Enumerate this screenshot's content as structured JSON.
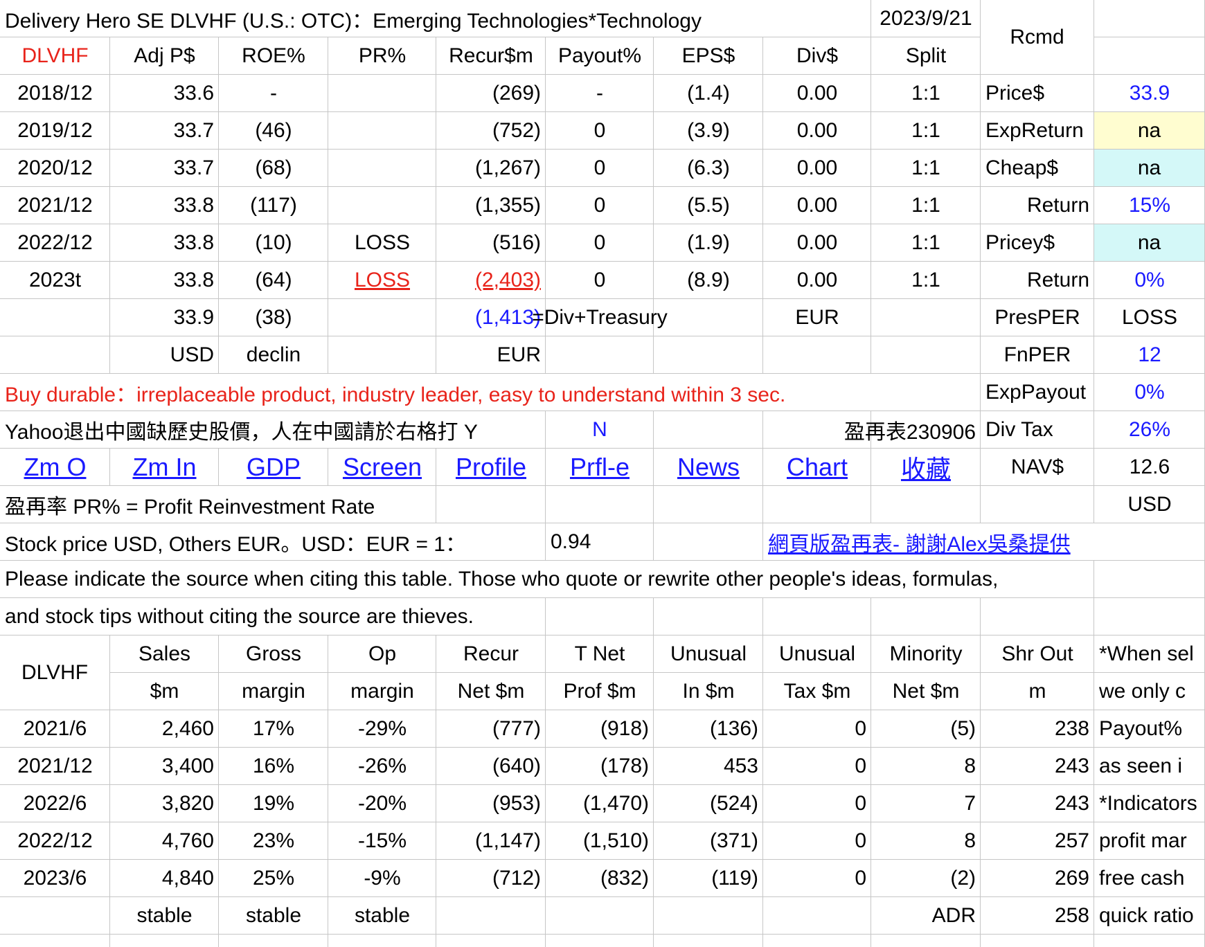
{
  "rows": [
    [
      "Delivery Hero SE DLVHF (U.S.: OTC)：Emerging Technologies*Technology",
      null,
      null,
      null,
      null,
      null,
      null,
      null,
      "2023/9/21",
      "Rcmd",
      null
    ],
    [
      "DLVHF",
      "Adj P$",
      "ROE%",
      "PR%",
      "Recur$m",
      "Payout%",
      "EPS$",
      "Div$",
      "Split",
      null,
      null
    ],
    [
      "2018/12",
      "33.6",
      "-",
      null,
      "(269)",
      "-",
      "(1.4)",
      "0.00",
      "1:1",
      "Price$",
      "33.9"
    ],
    [
      "2019/12",
      "33.7",
      "(46)",
      null,
      "(752)",
      "0",
      "(3.9)",
      "0.00",
      "1:1",
      "ExpReturn",
      "na"
    ],
    [
      "2020/12",
      "33.7",
      "(68)",
      null,
      "(1,267)",
      "0",
      "(6.3)",
      "0.00",
      "1:1",
      "Cheap$",
      "na"
    ],
    [
      "2021/12",
      "33.8",
      "(117)",
      null,
      "(1,355)",
      "0",
      "(5.5)",
      "0.00",
      "1:1",
      "Return",
      "15%"
    ],
    [
      "2022/12",
      "33.8",
      "(10)",
      "LOSS",
      "(516)",
      "0",
      "(1.9)",
      "0.00",
      "1:1",
      "Pricey$",
      "na"
    ],
    [
      "2023t",
      "33.8",
      "(64)",
      "LOSS",
      "(2,403)",
      "0",
      "(8.9)",
      "0.00",
      "1:1",
      "Return",
      "0%"
    ],
    [
      null,
      "33.9",
      "(38)",
      null,
      "(1,413)",
      "=Div+Treasury",
      null,
      "EUR",
      null,
      "PresPER",
      "LOSS"
    ],
    [
      null,
      "USD",
      "declin",
      null,
      "EUR",
      null,
      null,
      null,
      null,
      "FnPER",
      "12"
    ],
    [
      "Buy durable：irreplaceable product, industry leader, easy to understand within 3 sec.",
      null,
      null,
      null,
      null,
      null,
      null,
      null,
      null,
      "ExpPayout",
      "0%"
    ],
    [
      "Yahoo退出中國缺歷史股價，人在中國請於右格打 Y",
      null,
      null,
      null,
      null,
      "N",
      null,
      null,
      "盈再表230906",
      "Div Tax",
      "26%"
    ],
    [
      "Zm O",
      "Zm In",
      "GDP",
      "Screen",
      "Profile",
      "Prfl-e",
      "News",
      "Chart",
      "收藏",
      "NAV$",
      "12.6"
    ],
    [
      "盈再率 PR% = Profit Reinvestment Rate",
      null,
      null,
      null,
      null,
      null,
      null,
      null,
      null,
      null,
      "USD"
    ],
    [
      " Stock price USD, Others EUR。USD：EUR = 1：",
      null,
      null,
      null,
      null,
      "0.94",
      null,
      "網頁版盈再表- 謝謝Alex吳桑提供",
      null,
      null,
      null
    ],
    [
      "Please indicate the source when citing this table. Those who quote or rewrite other people's ideas, formulas,",
      null,
      null,
      null,
      null,
      null,
      null,
      null,
      null,
      null,
      null
    ],
    [
      "and stock tips without citing the source are thieves.",
      null,
      null,
      null,
      null,
      null,
      null,
      null,
      null,
      null,
      null
    ],
    [
      "DLVHF",
      "Sales",
      "Gross",
      "Op",
      "Recur",
      "T Net",
      "Unusual",
      "Unusual",
      "Minority",
      "Shr Out",
      "*When sel"
    ],
    [
      null,
      "$m",
      "margin",
      "margin",
      "Net $m",
      "Prof $m",
      "In $m",
      "Tax $m",
      "Net $m",
      "m",
      "we only c"
    ],
    [
      "2021/6",
      "2,460",
      "17%",
      "-29%",
      "(777)",
      "(918)",
      "(136)",
      "0",
      "(5)",
      "238",
      "Payout%"
    ],
    [
      "2021/12",
      "3,400",
      "16%",
      "-26%",
      "(640)",
      "(178)",
      "453",
      "0",
      "8",
      "243",
      "as seen i"
    ],
    [
      "2022/6",
      "3,820",
      "19%",
      "-20%",
      "(953)",
      "(1,470)",
      "(524)",
      "0",
      "7",
      "243",
      "*Indicators"
    ],
    [
      "2022/12",
      "4,760",
      "23%",
      "-15%",
      "(1,147)",
      "(1,510)",
      "(371)",
      "0",
      "8",
      "257",
      "profit mar"
    ],
    [
      "2023/6",
      "4,840",
      "25%",
      "-9%",
      "(712)",
      "(832)",
      "(119)",
      "0",
      "(2)",
      "269",
      "free cash"
    ],
    [
      null,
      "stable",
      "stable",
      "stable",
      null,
      null,
      null,
      null,
      "ADR",
      "258",
      "quick ratio"
    ]
  ]
}
